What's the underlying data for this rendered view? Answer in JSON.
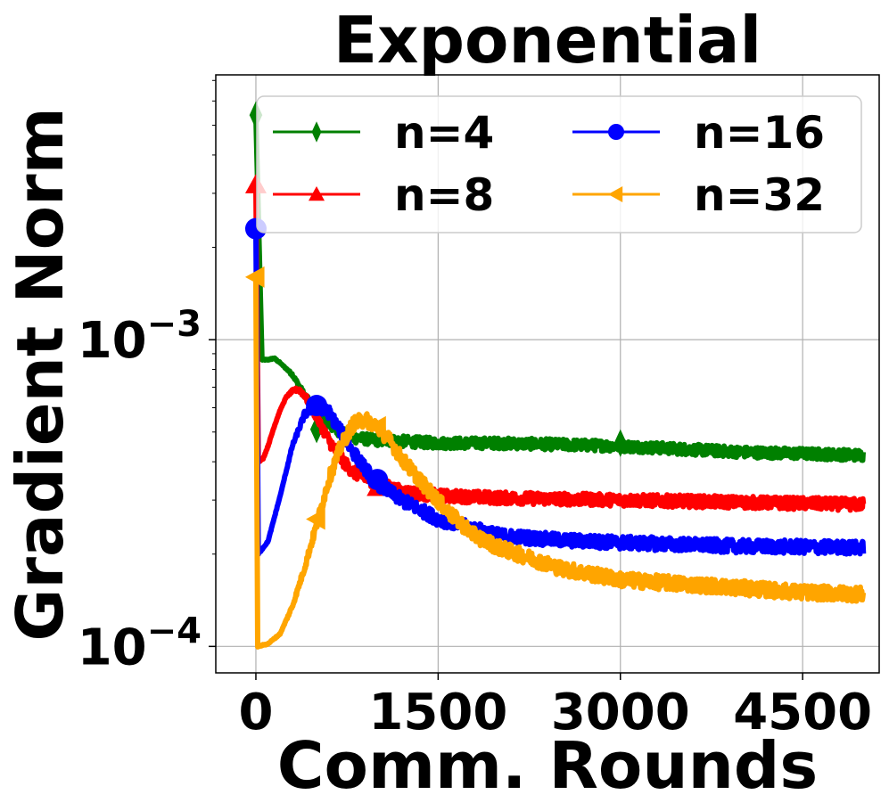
{
  "chart_data": {
    "type": "line",
    "title": "Exponential",
    "xlabel": "Comm. Rounds",
    "ylabel": "Gradient Norm",
    "yscale": "log",
    "xlim": [
      -330,
      5130
    ],
    "ylim": [
      8.2e-05,
      0.0073
    ],
    "xticks": [
      0,
      1500,
      3000,
      4500
    ],
    "xtick_labels": [
      "0",
      "1500",
      "3000",
      "4500"
    ],
    "yticks": [
      0.0001,
      0.001
    ],
    "ytick_labels": [
      {
        "base": "10",
        "exp": "−4"
      },
      {
        "base": "10",
        "exp": "−3"
      }
    ],
    "grid": true,
    "legend": {
      "placement": "top-right",
      "columns": 2
    },
    "series": [
      {
        "name": "n=4",
        "color": "#008000",
        "marker": "thin_diamond",
        "x": [
          0,
          50,
          100,
          150,
          200,
          300,
          400,
          500,
          600,
          700,
          800,
          1000,
          1500,
          2000,
          3000,
          4000,
          5000
        ],
        "y": [
          0.0054,
          0.00086,
          0.00086,
          0.00087,
          0.00084,
          0.00077,
          0.00066,
          0.00058,
          0.00053,
          0.0005,
          0.00048,
          0.00047,
          0.00046,
          0.00046,
          0.00045,
          0.00043,
          0.00042
        ],
        "marker_x": [
          0,
          500,
          3000
        ],
        "marker_y": [
          0.0054,
          0.00051,
          0.00046
        ]
      },
      {
        "name": "n=8",
        "color": "#ff0000",
        "marker": "triangle_up",
        "x": [
          0,
          20,
          60,
          100,
          150,
          200,
          250,
          300,
          350,
          400,
          500,
          600,
          700,
          800,
          1000,
          1200,
          1500,
          2000,
          3000,
          4000,
          5000
        ],
        "y": [
          0.0032,
          0.0004,
          0.00041,
          0.00045,
          0.00052,
          0.00059,
          0.00065,
          0.00068,
          0.00069,
          0.00066,
          0.00056,
          0.00047,
          0.00041,
          0.00037,
          0.00034,
          0.00032,
          0.00031,
          0.000305,
          0.0003,
          0.000295,
          0.00029
        ],
        "marker_x": [
          0,
          1000
        ],
        "marker_y": [
          0.0032,
          0.00033
        ]
      },
      {
        "name": "n=16",
        "color": "#0000ff",
        "marker": "circle",
        "x": [
          0,
          20,
          100,
          200,
          300,
          400,
          500,
          600,
          700,
          800,
          900,
          1000,
          1200,
          1500,
          2000,
          2500,
          3000,
          4000,
          5000
        ],
        "y": [
          0.0023,
          0.0002,
          0.00022,
          0.00031,
          0.00045,
          0.00057,
          0.00061,
          0.00058,
          0.0005,
          0.00043,
          0.00038,
          0.00034,
          0.0003,
          0.00026,
          0.00023,
          0.000222,
          0.000218,
          0.000212,
          0.00021
        ],
        "marker_x": [
          0,
          500,
          1000
        ],
        "marker_y": [
          0.0023,
          0.00061,
          0.00035
        ]
      },
      {
        "name": "n=32",
        "color": "#ffa500",
        "marker": "triangle_left",
        "x": [
          0,
          15,
          100,
          200,
          300,
          400,
          500,
          600,
          700,
          800,
          900,
          1000,
          1100,
          1200,
          1400,
          1600,
          1800,
          2000,
          2500,
          3000,
          3500,
          4000,
          4500,
          5000
        ],
        "y": [
          0.0016,
          0.0001,
          0.000102,
          0.00011,
          0.000135,
          0.00018,
          0.00025,
          0.00035,
          0.00045,
          0.00053,
          0.00055,
          0.00052,
          0.00047,
          0.00041,
          0.00033,
          0.00027,
          0.00023,
          0.00021,
          0.00018,
          0.000165,
          0.00016,
          0.000155,
          0.00015,
          0.000148
        ],
        "marker_x": [
          0,
          500,
          1000
        ],
        "marker_y": [
          0.0016,
          0.00026,
          0.00052
        ]
      }
    ]
  }
}
